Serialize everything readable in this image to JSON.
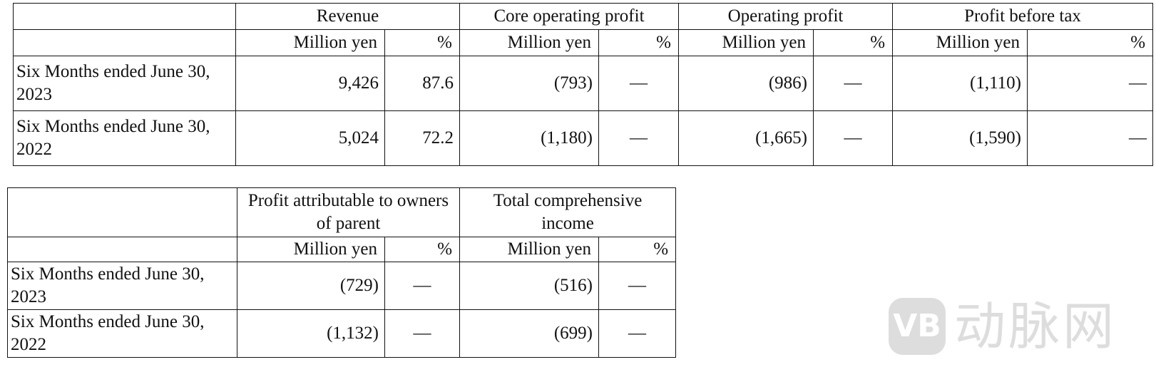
{
  "table1": {
    "headers": [
      "Revenue",
      "Core operating profit",
      "Operating profit",
      "Profit before tax"
    ],
    "unit_million": "Million yen",
    "unit_pct": "%",
    "rows": [
      {
        "label": "Six Months ended June 30, 2023",
        "values": [
          "9,426",
          "87.6",
          "(793)",
          "—",
          "(986)",
          "—",
          "(1,110)",
          "—"
        ]
      },
      {
        "label": "Six Months ended June 30, 2022",
        "values": [
          "5,024",
          "72.2",
          "(1,180)",
          "—",
          "(1,665)",
          "—",
          "(1,590)",
          "—"
        ]
      }
    ]
  },
  "table2": {
    "headers": [
      "Profit attributable to owners of parent",
      "Total comprehensive income"
    ],
    "unit_million": "Million yen",
    "unit_pct": "%",
    "rows": [
      {
        "label": "Six Months ended June 30, 2023",
        "values": [
          "(729)",
          "—",
          "(516)",
          "—"
        ]
      },
      {
        "label": "Six Months ended June 30, 2022",
        "values": [
          "(1,132)",
          "—",
          "(699)",
          "—"
        ]
      }
    ]
  },
  "watermark": {
    "badge": "VB",
    "text": "动脉网"
  }
}
